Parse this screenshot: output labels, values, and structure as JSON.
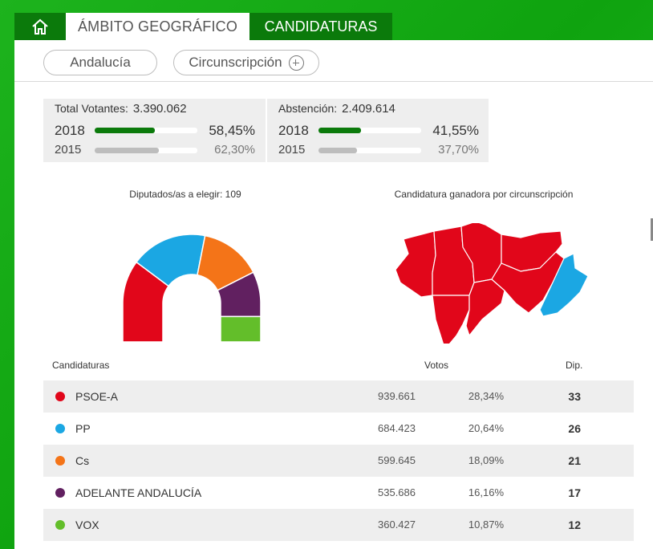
{
  "tabs": {
    "home_icon": "home-icon",
    "geo_label": "ÁMBITO GEOGRÁFICO",
    "cand_label": "CANDIDATURAS"
  },
  "filters": {
    "region": "Andalucía",
    "circ": "Circunscripción"
  },
  "stats": {
    "votantes": {
      "label": "Total Votantes:",
      "value": "3.390.062",
      "current_year": "2018",
      "current_pct": "58,45%",
      "current_fraction": 0.5845,
      "prev_year": "2015",
      "prev_pct": "62,30%",
      "prev_fraction": 0.623
    },
    "abstencion": {
      "label": "Abstención:",
      "value": "2.409.614",
      "current_year": "2018",
      "current_pct": "41,55%",
      "current_fraction": 0.4155,
      "prev_year": "2015",
      "prev_pct": "37,70%",
      "prev_fraction": 0.377
    }
  },
  "charts": {
    "hemicycle_title": "Diputados/as a elegir: 109",
    "map_title": "Candidatura ganadora por circunscripción"
  },
  "colors": {
    "psoe": "#e1061a",
    "pp": "#1ba7e3",
    "cs": "#f47418",
    "adelante": "#612060",
    "vox": "#63be2a",
    "accent": "#0b7a0b"
  },
  "chart_data": {
    "type": "pie",
    "categories": [
      "PSOE-A",
      "PP",
      "Cs",
      "ADELANTE ANDALUCÍA",
      "VOX"
    ],
    "values": [
      33,
      26,
      21,
      17,
      12
    ],
    "title": "Diputados/as a elegir: 109"
  },
  "table": {
    "col_name": "Candidaturas",
    "col_votes": "Votos",
    "col_dip": "Dip.",
    "rows": [
      {
        "name": "PSOE-A",
        "votes": "939.661",
        "pct": "28,34%",
        "dip": "33",
        "color": "#e1061a"
      },
      {
        "name": "PP",
        "votes": "684.423",
        "pct": "20,64%",
        "dip": "26",
        "color": "#1ba7e3"
      },
      {
        "name": "Cs",
        "votes": "599.645",
        "pct": "18,09%",
        "dip": "21",
        "color": "#f47418"
      },
      {
        "name": "ADELANTE ANDALUCÍA",
        "votes": "535.686",
        "pct": "16,16%",
        "dip": "17",
        "color": "#612060"
      },
      {
        "name": "VOX",
        "votes": "360.427",
        "pct": "10,87%",
        "dip": "12",
        "color": "#63be2a"
      }
    ]
  }
}
